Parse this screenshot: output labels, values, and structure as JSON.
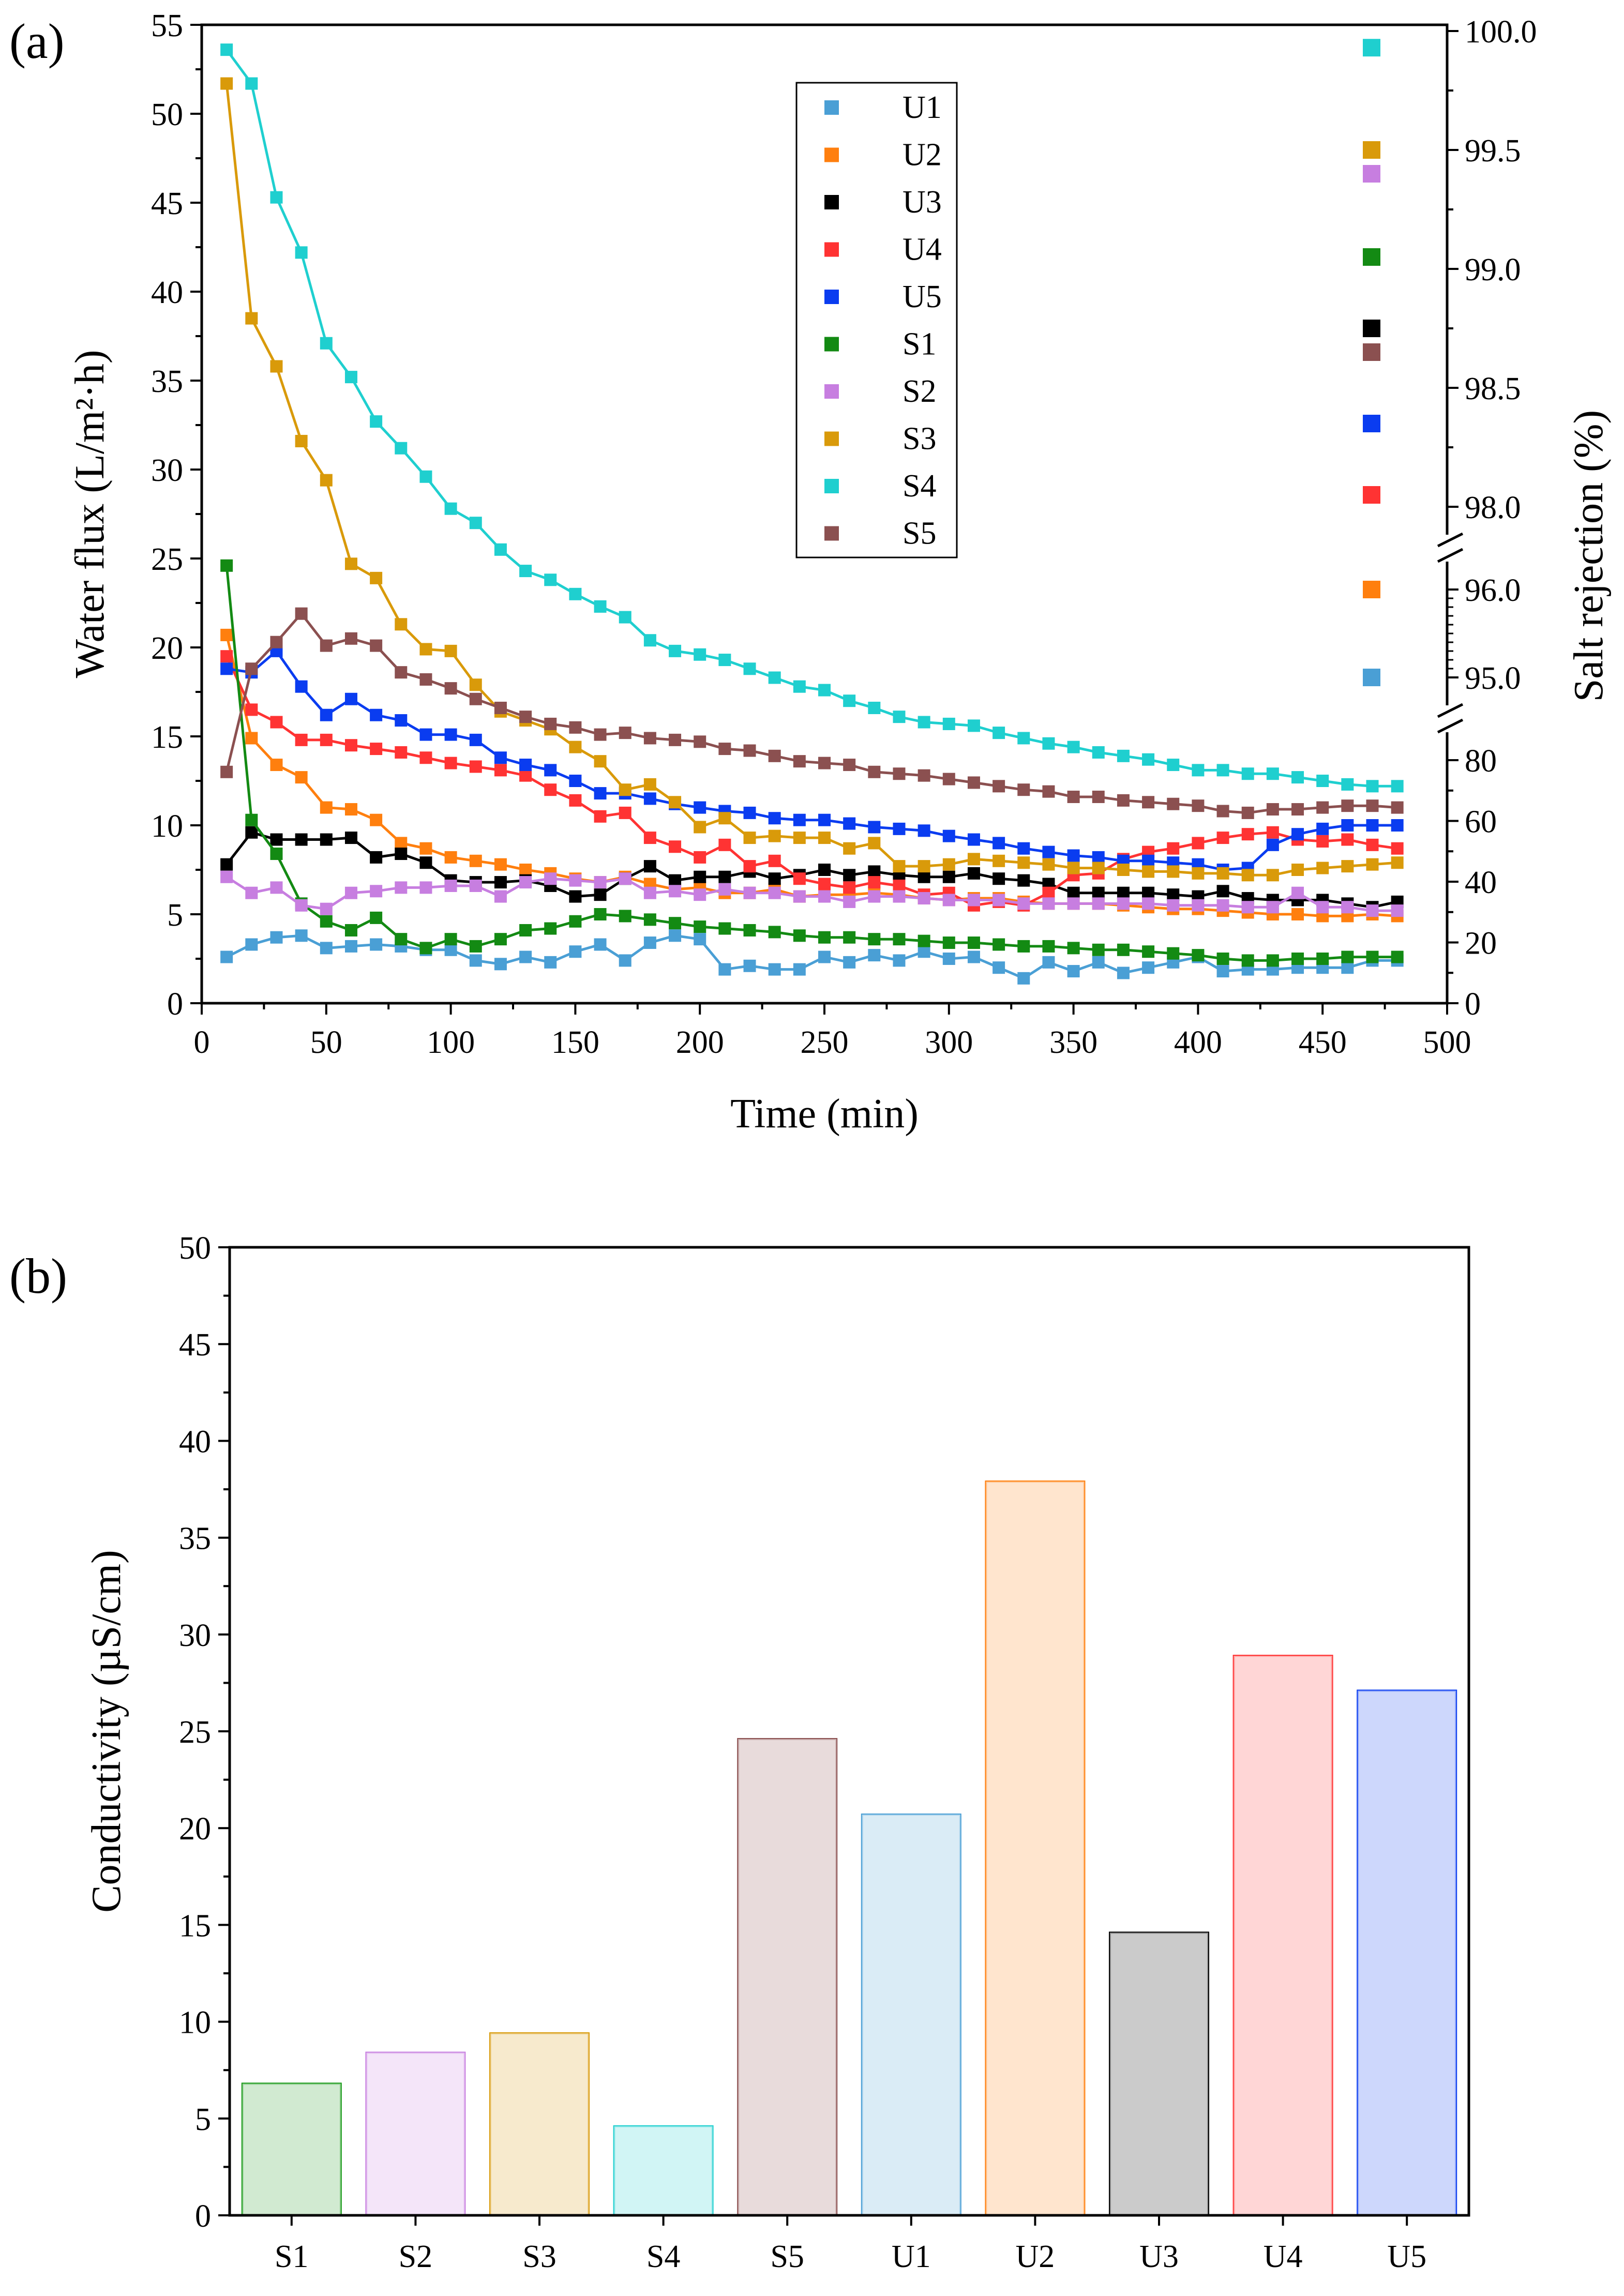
{
  "panels": {
    "a": {
      "label": "(a)"
    },
    "b": {
      "label": "(b)"
    }
  },
  "chart_data": [
    {
      "type": "line",
      "panel": "(a)",
      "xlabel": "Time (min)",
      "xlim": [
        0,
        500
      ],
      "xticks": [
        "0",
        "50",
        "100",
        "150",
        "200",
        "250",
        "300",
        "350",
        "400",
        "450",
        "500"
      ],
      "ylabel": "Water flux (L/m²·h)",
      "ylim": [
        0,
        55
      ],
      "yticks": [
        "0",
        "5",
        "10",
        "15",
        "20",
        "25",
        "30",
        "35",
        "40",
        "45",
        "50",
        "55"
      ],
      "y2label": "Salt rejection (%)",
      "y2_axis": {
        "broken": true,
        "segments": [
          {
            "range": [
              0,
              80
            ],
            "ticks": [
              "0",
              "20",
              "40",
              "60",
              "80"
            ]
          },
          {
            "range": [
              95.0,
              96.0
            ],
            "ticks": [
              "95.0",
              "96.0"
            ]
          },
          {
            "range": [
              98.0,
              100.0
            ],
            "ticks": [
              "98.0",
              "98.5",
              "99.0",
              "99.5",
              "100.0"
            ]
          }
        ]
      },
      "legend_position": "top-center",
      "grid": false,
      "x": [
        10,
        20,
        30,
        40,
        50,
        60,
        70,
        80,
        90,
        100,
        110,
        120,
        130,
        140,
        150,
        160,
        170,
        180,
        190,
        200,
        210,
        220,
        230,
        240,
        250,
        260,
        270,
        280,
        290,
        300,
        310,
        320,
        330,
        340,
        350,
        360,
        370,
        380,
        390,
        400,
        410,
        420,
        430,
        440,
        450,
        460,
        470,
        480
      ],
      "series": [
        {
          "name": "U1",
          "color": "#4a9fd5",
          "values": [
            2.6,
            3.3,
            3.7,
            3.8,
            3.1,
            3.2,
            3.3,
            3.2,
            3.0,
            3.0,
            2.4,
            2.2,
            2.6,
            2.3,
            2.9,
            3.3,
            2.4,
            3.4,
            3.8,
            3.6,
            1.9,
            2.1,
            1.9,
            1.9,
            2.6,
            2.3,
            2.7,
            2.4,
            2.9,
            2.5,
            2.6,
            2.0,
            1.4,
            2.3,
            1.8,
            2.3,
            1.7,
            2.0,
            2.3,
            2.6,
            1.8,
            1.9,
            1.9,
            2.0,
            2.0,
            2.0,
            2.4,
            2.4
          ],
          "rejection_pct": 95.0
        },
        {
          "name": "U2",
          "color": "#ff7f0e",
          "values": [
            20.7,
            14.9,
            13.4,
            12.7,
            11.0,
            10.9,
            10.3,
            9.0,
            8.7,
            8.2,
            8.0,
            7.8,
            7.5,
            7.3,
            7.0,
            6.8,
            7.1,
            6.7,
            6.4,
            6.5,
            6.2,
            6.2,
            6.4,
            6.0,
            6.1,
            6.1,
            6.2,
            6.1,
            5.9,
            5.8,
            5.9,
            5.9,
            5.7,
            5.6,
            5.6,
            5.6,
            5.5,
            5.4,
            5.3,
            5.3,
            5.2,
            5.1,
            5.0,
            5.0,
            4.9,
            4.9,
            5.0,
            4.9
          ],
          "rejection_pct": 96.0
        },
        {
          "name": "U3",
          "color": "#000000",
          "values": [
            7.8,
            9.6,
            9.2,
            9.2,
            9.2,
            9.3,
            8.2,
            8.4,
            7.9,
            6.9,
            6.8,
            6.8,
            6.9,
            6.6,
            6.0,
            6.1,
            7.0,
            7.7,
            6.9,
            7.1,
            7.1,
            7.4,
            7.0,
            7.2,
            7.5,
            7.2,
            7.4,
            7.2,
            7.1,
            7.1,
            7.3,
            7.0,
            6.9,
            6.7,
            6.2,
            6.2,
            6.2,
            6.2,
            6.1,
            6.0,
            6.3,
            5.9,
            5.8,
            5.8,
            5.8,
            5.6,
            5.4,
            5.7
          ],
          "rejection_pct": 98.75
        },
        {
          "name": "U4",
          "color": "#ff3333",
          "values": [
            19.5,
            16.5,
            15.8,
            14.8,
            14.8,
            14.5,
            14.3,
            14.1,
            13.8,
            13.5,
            13.3,
            13.1,
            12.8,
            12.0,
            11.4,
            10.5,
            10.7,
            9.3,
            8.8,
            8.2,
            8.9,
            7.7,
            8.0,
            7.0,
            6.7,
            6.5,
            6.8,
            6.6,
            6.1,
            6.2,
            5.5,
            5.7,
            5.5,
            6.2,
            7.2,
            7.3,
            8.1,
            8.5,
            8.7,
            9.0,
            9.3,
            9.5,
            9.6,
            9.2,
            9.1,
            9.2,
            8.9,
            8.7
          ],
          "rejection_pct": 98.05
        },
        {
          "name": "U5",
          "color": "#0a3cf0",
          "values": [
            18.8,
            18.6,
            19.8,
            17.8,
            16.2,
            17.1,
            16.2,
            15.9,
            15.1,
            15.1,
            14.8,
            13.8,
            13.4,
            13.1,
            12.5,
            11.8,
            11.8,
            11.5,
            11.2,
            11.0,
            10.8,
            10.7,
            10.4,
            10.3,
            10.3,
            10.1,
            9.9,
            9.8,
            9.7,
            9.4,
            9.2,
            9.0,
            8.7,
            8.5,
            8.3,
            8.2,
            8.0,
            8.0,
            7.9,
            7.8,
            7.5,
            7.6,
            8.9,
            9.5,
            9.8,
            10.0,
            10.0,
            10.0
          ],
          "rejection_pct": 98.35
        },
        {
          "name": "S1",
          "color": "#138a13",
          "values": [
            24.6,
            10.3,
            8.4,
            5.6,
            4.6,
            4.1,
            4.8,
            3.6,
            3.1,
            3.6,
            3.2,
            3.6,
            4.1,
            4.2,
            4.6,
            5.0,
            4.9,
            4.7,
            4.5,
            4.3,
            4.2,
            4.1,
            4.0,
            3.8,
            3.7,
            3.7,
            3.6,
            3.6,
            3.5,
            3.4,
            3.4,
            3.3,
            3.2,
            3.2,
            3.1,
            3.0,
            3.0,
            2.9,
            2.8,
            2.7,
            2.5,
            2.4,
            2.4,
            2.5,
            2.5,
            2.6,
            2.6,
            2.6
          ],
          "rejection_pct": 99.05
        },
        {
          "name": "S2",
          "color": "#c77ee0",
          "values": [
            7.1,
            6.2,
            6.5,
            5.5,
            5.3,
            6.2,
            6.3,
            6.5,
            6.5,
            6.6,
            6.6,
            6.0,
            6.8,
            7.0,
            6.9,
            6.8,
            7.0,
            6.2,
            6.3,
            6.1,
            6.4,
            6.2,
            6.2,
            6.0,
            6.0,
            5.7,
            6.0,
            6.0,
            5.9,
            5.8,
            5.8,
            5.8,
            5.6,
            5.6,
            5.6,
            5.6,
            5.6,
            5.6,
            5.5,
            5.5,
            5.5,
            5.4,
            5.4,
            6.2,
            5.4,
            5.4,
            5.2,
            5.2
          ],
          "rejection_pct": 99.4
        },
        {
          "name": "S3",
          "color": "#d99a0a",
          "values": [
            51.7,
            38.5,
            35.8,
            31.6,
            29.4,
            24.7,
            23.9,
            21.3,
            19.9,
            19.8,
            17.9,
            16.4,
            15.9,
            15.4,
            14.4,
            13.6,
            12.0,
            12.3,
            11.3,
            9.9,
            10.4,
            9.3,
            9.4,
            9.3,
            9.3,
            8.7,
            9.0,
            7.7,
            7.7,
            7.8,
            8.1,
            8.0,
            7.9,
            7.8,
            7.6,
            7.6,
            7.5,
            7.4,
            7.4,
            7.3,
            7.3,
            7.2,
            7.2,
            7.5,
            7.6,
            7.7,
            7.8,
            7.9
          ],
          "rejection_pct": 99.5
        },
        {
          "name": "S4",
          "color": "#1fcfcf",
          "values": [
            53.6,
            51.7,
            45.3,
            42.2,
            37.1,
            35.2,
            32.7,
            31.2,
            29.6,
            27.8,
            27.0,
            25.5,
            24.3,
            23.8,
            23.0,
            22.3,
            21.7,
            20.4,
            19.8,
            19.6,
            19.3,
            18.8,
            18.3,
            17.8,
            17.6,
            17.0,
            16.6,
            16.1,
            15.8,
            15.7,
            15.6,
            15.2,
            14.9,
            14.6,
            14.4,
            14.1,
            13.9,
            13.7,
            13.4,
            13.1,
            13.1,
            12.9,
            12.9,
            12.7,
            12.5,
            12.3,
            12.2,
            12.2
          ],
          "rejection_pct": 99.93
        },
        {
          "name": "S5",
          "color": "#8b5050",
          "values": [
            13.0,
            18.8,
            20.3,
            21.9,
            20.1,
            20.5,
            20.1,
            18.6,
            18.2,
            17.7,
            17.1,
            16.6,
            16.1,
            15.7,
            15.5,
            15.1,
            15.2,
            14.9,
            14.8,
            14.7,
            14.3,
            14.2,
            13.9,
            13.6,
            13.5,
            13.4,
            13.0,
            12.9,
            12.8,
            12.6,
            12.4,
            12.2,
            12.0,
            11.9,
            11.6,
            11.6,
            11.4,
            11.3,
            11.2,
            11.1,
            10.8,
            10.7,
            10.9,
            10.9,
            11.0,
            11.1,
            11.1,
            11.0
          ],
          "rejection_pct": 98.65
        }
      ]
    },
    {
      "type": "bar",
      "panel": "(b)",
      "ylabel": "Conductivity (µS/cm)",
      "ylim": [
        0,
        50
      ],
      "yticks": [
        "0",
        "5",
        "10",
        "15",
        "20",
        "25",
        "30",
        "35",
        "40",
        "45",
        "50"
      ],
      "grid": false,
      "categories": [
        "S1",
        "S2",
        "S3",
        "S4",
        "S5",
        "U1",
        "U2",
        "U3",
        "U4",
        "U5"
      ],
      "values": [
        6.8,
        8.4,
        9.4,
        4.6,
        24.6,
        20.7,
        37.9,
        14.6,
        28.9,
        27.1
      ],
      "bar_colors": [
        "#1a9a1a",
        "#c77ee0",
        "#d99a0a",
        "#1fcfcf",
        "#8b5050",
        "#4a9fd5",
        "#ff7f0e",
        "#000000",
        "#ff3333",
        "#0a3cf0"
      ]
    }
  ]
}
